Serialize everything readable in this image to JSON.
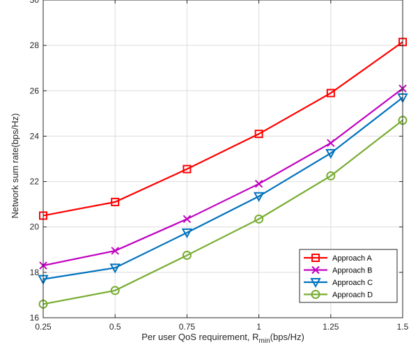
{
  "chart_data": {
    "type": "line",
    "title": "",
    "xlabel": "Per user QoS requirement, R",
    "xlabel_sub": "min",
    "xlabel_suffix": "(bps/Hz)",
    "ylabel": "Network sum rate(bps/Hz)",
    "x": [
      0.25,
      0.5,
      0.75,
      1,
      1.25,
      1.5
    ],
    "x_tick_labels": [
      "0.25",
      "0.5",
      "0.75",
      "1",
      "1.25",
      "1.5"
    ],
    "y_ticks": [
      16,
      18,
      20,
      22,
      24,
      26,
      28,
      30
    ],
    "xlim": [
      0.25,
      1.5
    ],
    "ylim": [
      16,
      30
    ],
    "grid": true,
    "legend_position": "bottom-right",
    "series": [
      {
        "name": "Approach A",
        "color": "#ff0000",
        "marker": "square",
        "values": [
          20.5,
          21.1,
          22.55,
          24.1,
          25.9,
          28.15
        ]
      },
      {
        "name": "Approach B",
        "color": "#c000c0",
        "marker": "x",
        "values": [
          18.3,
          18.95,
          20.35,
          21.9,
          23.7,
          26.1
        ]
      },
      {
        "name": "Approach C",
        "color": "#0072bd",
        "marker": "triangle-down",
        "values": [
          17.7,
          18.2,
          19.75,
          21.35,
          23.25,
          25.7
        ]
      },
      {
        "name": "Approach D",
        "color": "#77ac30",
        "marker": "circle",
        "values": [
          16.6,
          17.2,
          18.75,
          20.35,
          22.25,
          24.7
        ]
      }
    ]
  }
}
